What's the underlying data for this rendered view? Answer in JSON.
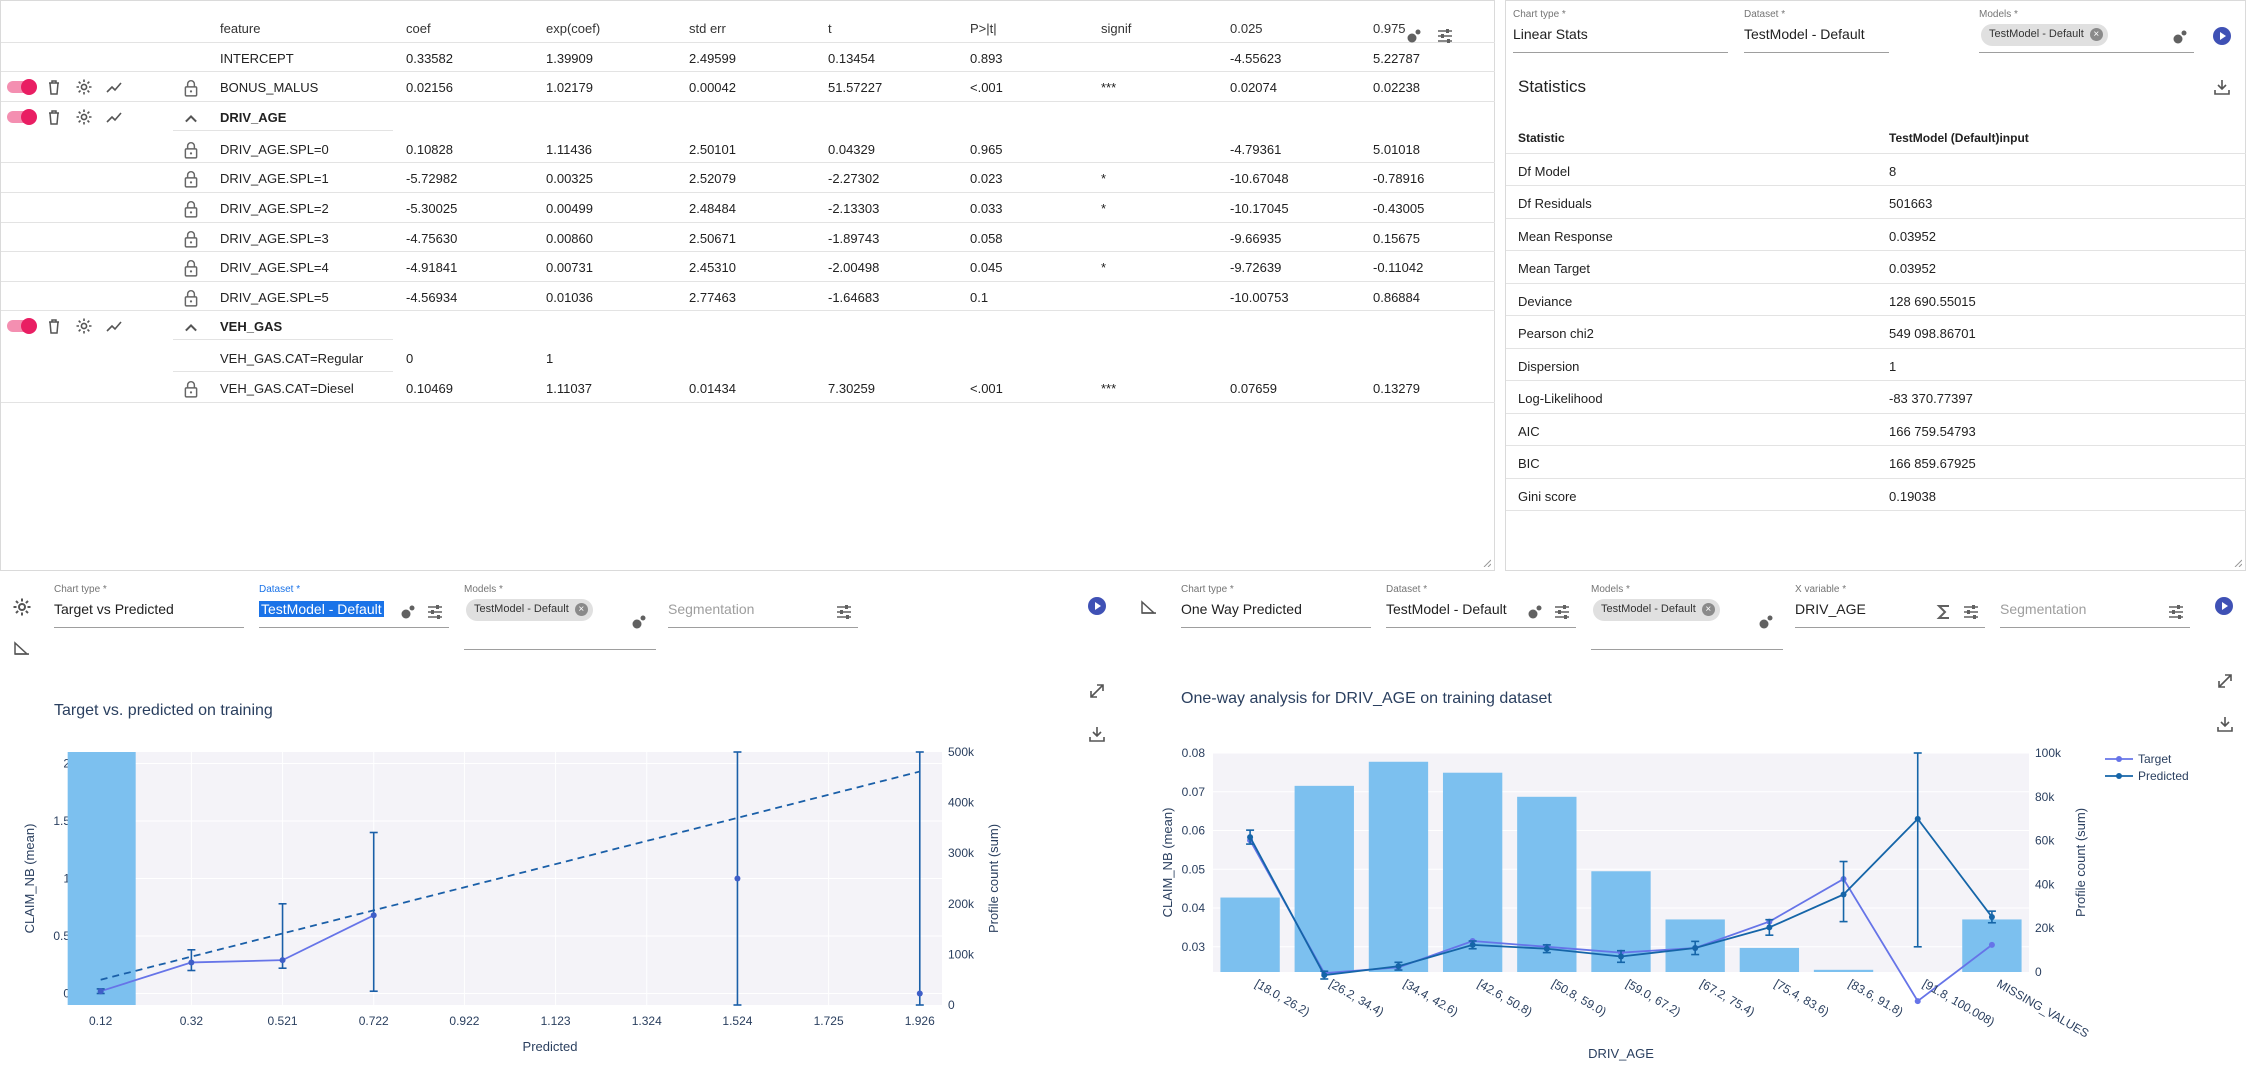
{
  "coef_table": {
    "headers": [
      "feature",
      "coef",
      "exp(coef)",
      "std err",
      "t",
      "P>|t|",
      "signif",
      "0.025",
      "0.975"
    ],
    "rows": [
      {
        "type": "plain",
        "cells": [
          "INTERCEPT",
          "0.33582",
          "1.39909",
          "2.49599",
          "0.13454",
          "0.893",
          "",
          "-4.55623",
          "5.22787"
        ]
      },
      {
        "type": "variable",
        "cells": [
          "BONUS_MALUS",
          "0.02156",
          "1.02179",
          "0.00042",
          "51.57227",
          "<.001",
          "***",
          "0.02074",
          "0.02238"
        ]
      },
      {
        "type": "group",
        "name": "DRIV_AGE"
      },
      {
        "type": "level",
        "cells": [
          "DRIV_AGE.SPL=0",
          "0.10828",
          "1.11436",
          "2.50101",
          "0.04329",
          "0.965",
          "",
          "-4.79361",
          "5.01018"
        ]
      },
      {
        "type": "level",
        "cells": [
          "DRIV_AGE.SPL=1",
          "-5.72982",
          "0.00325",
          "2.52079",
          "-2.27302",
          "0.023",
          "*",
          "-10.67048",
          "-0.78916"
        ]
      },
      {
        "type": "level",
        "cells": [
          "DRIV_AGE.SPL=2",
          "-5.30025",
          "0.00499",
          "2.48484",
          "-2.13303",
          "0.033",
          "*",
          "-10.17045",
          "-0.43005"
        ]
      },
      {
        "type": "level",
        "cells": [
          "DRIV_AGE.SPL=3",
          "-4.75630",
          "0.00860",
          "2.50671",
          "-1.89743",
          "0.058",
          "",
          "-9.66935",
          "0.15675"
        ]
      },
      {
        "type": "level",
        "cells": [
          "DRIV_AGE.SPL=4",
          "-4.91841",
          "0.00731",
          "2.45310",
          "-2.00498",
          "0.045",
          "*",
          "-9.72639",
          "-0.11042"
        ]
      },
      {
        "type": "level",
        "cells": [
          "DRIV_AGE.SPL=5",
          "-4.56934",
          "0.01036",
          "2.77463",
          "-1.64683",
          "0.1",
          "",
          "-10.00753",
          "0.86884"
        ]
      },
      {
        "type": "group",
        "name": "VEH_GAS"
      },
      {
        "type": "base",
        "cells": [
          "VEH_GAS.CAT=Regular",
          "0",
          "1",
          "",
          "",
          "",
          "",
          "",
          ""
        ]
      },
      {
        "type": "level",
        "cells": [
          "VEH_GAS.CAT=Diesel",
          "0.10469",
          "1.11037",
          "0.01434",
          "7.30259",
          "<.001",
          "***",
          "0.07659",
          "0.13279"
        ]
      }
    ]
  },
  "stats_panel": {
    "chart_type_label": "Chart type *",
    "chart_type_value": "Linear Stats",
    "dataset_label": "Dataset *",
    "dataset_value": "TestModel - Default",
    "models_label": "Models *",
    "model_chip": "TestModel - Default",
    "title": "Statistics",
    "col_statistic": "Statistic",
    "col_model": "TestModel (Default)input",
    "rows": [
      [
        "Df Model",
        "8"
      ],
      [
        "Df Residuals",
        "501663"
      ],
      [
        "Mean Response",
        "0.03952"
      ],
      [
        "Mean Target",
        "0.03952"
      ],
      [
        "Deviance",
        "128 690.55015"
      ],
      [
        "Pearson chi2",
        "549 098.86701"
      ],
      [
        "Dispersion",
        "1"
      ],
      [
        "Log-Likelihood",
        "-83 370.77397"
      ],
      [
        "AIC",
        "166 759.54793"
      ],
      [
        "BIC",
        "166 859.67925"
      ],
      [
        "Gini score",
        "0.19038"
      ]
    ]
  },
  "tvp_panel": {
    "chart_type_label": "Chart type *",
    "chart_type_value": "Target vs Predicted",
    "dataset_label": "Dataset *",
    "dataset_value": "TestModel - Default",
    "models_label": "Models *",
    "model_chip": "TestModel - Default",
    "segmentation_placeholder": "Segmentation"
  },
  "oneway_panel": {
    "chart_type_label": "Chart type *",
    "chart_type_value": "One Way Predicted",
    "dataset_label": "Dataset *",
    "dataset_value": "TestModel - Default",
    "models_label": "Models *",
    "model_chip": "TestModel - Default",
    "xvar_label": "X variable *",
    "xvar_value": "DRIV_AGE",
    "segmentation_placeholder": "Segmentation"
  },
  "chart_data": [
    {
      "type": "line",
      "title": "Target vs. predicted on training",
      "xlabel": "Predicted",
      "ylabel": "CLAIM_NB (mean)",
      "y2label": "Profile count (sum)",
      "x_ticks": [
        "0.12",
        "0.32",
        "0.521",
        "0.722",
        "0.922",
        "1.123",
        "1.324",
        "1.524",
        "1.725",
        "1.926"
      ],
      "y_ticks": [
        "0",
        "0.5",
        "1",
        "1.5",
        "2"
      ],
      "y2_ticks": [
        "0",
        "100k",
        "200k",
        "300k",
        "400k",
        "500k"
      ],
      "ylim": [
        -0.1,
        2.1
      ],
      "y2lim": [
        0,
        500000
      ],
      "bars": [
        {
          "x": 0.12,
          "value": 500000
        }
      ],
      "series": [
        {
          "name": "Target",
          "x": [
            0.12,
            0.32,
            0.521,
            0.722,
            1.524,
            1.926
          ],
          "values": [
            0.02,
            0.27,
            0.29,
            0.68,
            1.0,
            0.0
          ],
          "err_low": [
            0.0,
            0.2,
            0.22,
            0.02,
            -0.1,
            -0.1
          ],
          "err_high": [
            0.04,
            0.38,
            0.78,
            1.4,
            2.1,
            2.1
          ]
        }
      ],
      "reference_line": {
        "x": [
          0.12,
          1.926
        ],
        "values": [
          0.12,
          1.93
        ],
        "style": "dashed"
      },
      "color": "#1f77b4",
      "bar_color": "#7cc0ef"
    },
    {
      "type": "bar",
      "title": "One-way analysis for DRIV_AGE on training dataset",
      "xlabel": "DRIV_AGE",
      "ylabel": "CLAIM_NB (mean)",
      "y2label": "Profile count (sum)",
      "categories": [
        "[18.0, 26.2)",
        "[26.2, 34.4)",
        "[34.4, 42.6)",
        "[42.6, 50.8)",
        "[50.8, 59.0)",
        "[59.0, 67.2)",
        "[67.2, 75.4)",
        "[75.4, 83.6)",
        "[83.6, 91.8)",
        "[91.8, 100.008)",
        "MISSING_VALUES"
      ],
      "y_ticks": [
        "0.03",
        "0.04",
        "0.05",
        "0.06",
        "0.07",
        "0.08"
      ],
      "y2_ticks": [
        "0",
        "20k",
        "40k",
        "60k",
        "80k",
        "100k"
      ],
      "ylim": [
        0.0235,
        0.08
      ],
      "y2lim": [
        0,
        100000
      ],
      "bar_values": [
        34000,
        85000,
        96000,
        91000,
        80000,
        46000,
        24000,
        11000,
        1000,
        0,
        24000
      ],
      "series": [
        {
          "name": "Target",
          "color": "#6674e8",
          "values": [
            0.0575,
            0.0232,
            0.0247,
            0.0315,
            0.03,
            0.0285,
            0.0297,
            0.0365,
            0.0475,
            0.016,
            0.0305
          ]
        },
        {
          "name": "Predicted",
          "color": "#1565a8",
          "values": [
            0.0583,
            0.0227,
            0.025,
            0.0305,
            0.0295,
            0.0275,
            0.0297,
            0.035,
            0.0435,
            0.063,
            0.0377
          ],
          "err_low": [
            0.0565,
            0.0217,
            0.024,
            0.0295,
            0.0285,
            0.026,
            0.028,
            0.033,
            0.0365,
            0.03,
            0.0362
          ],
          "err_high": [
            0.0601,
            0.0237,
            0.026,
            0.0315,
            0.0305,
            0.029,
            0.0314,
            0.037,
            0.052,
            0.08,
            0.0392
          ]
        }
      ],
      "legend": [
        "Target",
        "Predicted"
      ],
      "legend_position": "top-right",
      "bar_color": "#7cc0ef"
    }
  ]
}
